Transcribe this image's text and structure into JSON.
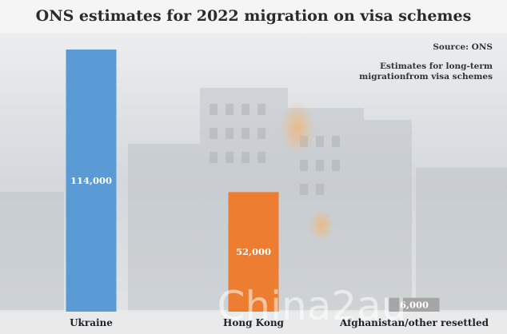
{
  "chart_data": {
    "type": "bar",
    "title": "ONS estimates for 2022 migration on visa schemes",
    "source": "Source: ONS",
    "note_lines": [
      "Estimates for long-term",
      "migrationfrom visa schemes"
    ],
    "categories": [
      "Ukraine",
      "Hong Kong",
      "Afghanistan/other resettled"
    ],
    "values": [
      114000,
      52000,
      6000
    ],
    "value_labels": [
      "114,000",
      "52,000",
      "6,000"
    ],
    "colors": [
      "#5b9bd5",
      "#ed7d31",
      "#a5a5a5"
    ],
    "ylim": [
      0,
      114000
    ],
    "xlabel": "",
    "ylabel": "",
    "grid": false
  },
  "watermark": "China2au",
  "theme": {
    "background_tint": "#dde2e6",
    "title_band": "#f4f4f4"
  }
}
